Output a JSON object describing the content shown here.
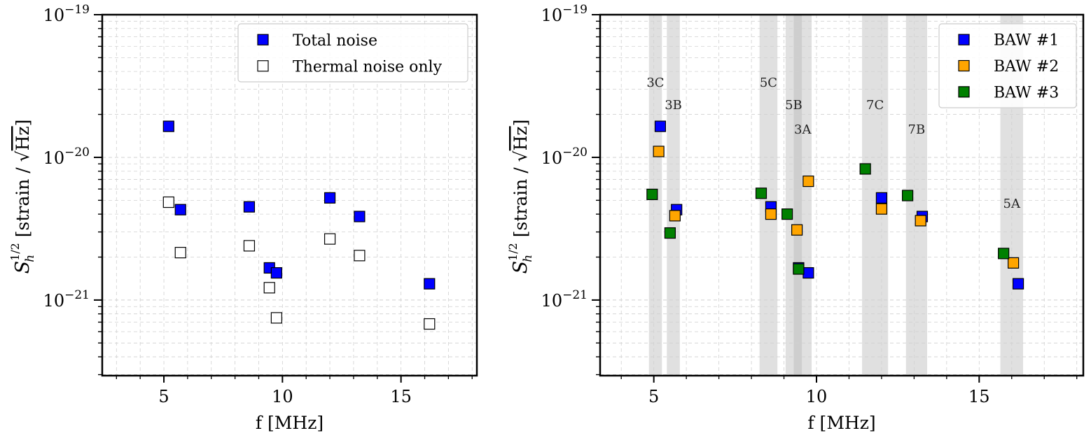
{
  "chart_data": [
    {
      "type": "scatter",
      "xlabel": "f [MHz]",
      "ylabel": "S_h^{1/2} [strain / √Hz]",
      "xlim": [
        2.4,
        18.2
      ],
      "ylim_log10": [
        -21.53,
        -19
      ],
      "yscale": "log",
      "xticks": [
        5,
        10,
        15
      ],
      "yticks": [
        {
          "base": "10",
          "exp": "−19"
        },
        {
          "base": "10",
          "exp": "−20"
        },
        {
          "base": "10",
          "exp": "−21"
        }
      ],
      "grid": true,
      "legend_position": "top-right",
      "series": [
        {
          "name": "Total noise",
          "color": "#0000ff",
          "filled": true,
          "points": [
            [
              5.2,
              1.65e-20
            ],
            [
              5.7,
              4.3e-21
            ],
            [
              8.6,
              4.5e-21
            ],
            [
              9.45,
              1.68e-21
            ],
            [
              9.75,
              1.55e-21
            ],
            [
              12.0,
              5.2e-21
            ],
            [
              13.25,
              3.85e-21
            ],
            [
              16.2,
              1.3e-21
            ]
          ]
        },
        {
          "name": "Thermal noise only",
          "color": "#ffffff",
          "filled": false,
          "points": [
            [
              5.2,
              4.85e-21
            ],
            [
              5.7,
              2.15e-21
            ],
            [
              8.6,
              2.4e-21
            ],
            [
              9.45,
              1.22e-21
            ],
            [
              9.75,
              7.5e-22
            ],
            [
              12.0,
              2.68e-21
            ],
            [
              13.25,
              2.05e-21
            ],
            [
              16.2,
              6.8e-22
            ]
          ]
        }
      ]
    },
    {
      "type": "scatter",
      "xlabel": "f [MHz]",
      "ylabel": "S_h^{1/2} [strain / √Hz]",
      "xlim": [
        3.35,
        18.2
      ],
      "ylim_log10": [
        -21.53,
        -19
      ],
      "yscale": "log",
      "xticks": [
        5,
        10,
        15
      ],
      "yticks": [
        {
          "base": "10",
          "exp": "−19"
        },
        {
          "base": "10",
          "exp": "−20"
        },
        {
          "base": "10",
          "exp": "−21"
        }
      ],
      "grid": true,
      "legend_position": "top-right",
      "bands": [
        {
          "label": "3C",
          "x0": 4.85,
          "x1": 5.25,
          "label_y": 3.3e-20
        },
        {
          "label": "3B",
          "x0": 5.4,
          "x1": 5.8,
          "label_y": 2.3e-20
        },
        {
          "label": "5C",
          "x0": 8.25,
          "x1": 8.8,
          "label_y": 3.3e-20
        },
        {
          "label": "5B",
          "x0": 9.05,
          "x1": 9.55,
          "label_y": 2.3e-20
        },
        {
          "label": "3A",
          "x0": 9.3,
          "x1": 9.85,
          "label_y": 1.55e-20
        },
        {
          "label": "7C",
          "x0": 11.4,
          "x1": 12.2,
          "label_y": 2.3e-20
        },
        {
          "label": "7B",
          "x0": 12.75,
          "x1": 13.4,
          "label_y": 1.55e-20
        },
        {
          "label": "5A",
          "x0": 15.65,
          "x1": 16.35,
          "label_y": 4.7e-21
        }
      ],
      "series": [
        {
          "name": "BAW #1",
          "color": "#0000ff",
          "points": [
            [
              5.2,
              1.65e-20
            ],
            [
              5.7,
              4.3e-21
            ],
            [
              8.6,
              4.5e-21
            ],
            [
              9.45,
              1.68e-21
            ],
            [
              9.75,
              1.55e-21
            ],
            [
              12.0,
              5.2e-21
            ],
            [
              13.25,
              3.85e-21
            ],
            [
              16.2,
              1.3e-21
            ]
          ]
        },
        {
          "name": "BAW #2",
          "color": "#ffa500",
          "points": [
            [
              5.15,
              1.1e-20
            ],
            [
              5.65,
              3.9e-21
            ],
            [
              8.6,
              4e-21
            ],
            [
              9.4,
              3.1e-21
            ],
            [
              9.75,
              6.8e-21
            ],
            [
              12.0,
              4.35e-21
            ],
            [
              13.2,
              3.6e-21
            ],
            [
              16.05,
              1.82e-21
            ]
          ]
        },
        {
          "name": "BAW #3",
          "color": "#008000",
          "points": [
            [
              4.95,
              5.5e-21
            ],
            [
              5.5,
              2.95e-21
            ],
            [
              8.3,
              5.6e-21
            ],
            [
              9.1,
              4e-21
            ],
            [
              9.45,
              1.65e-21
            ],
            [
              11.5,
              8.3e-21
            ],
            [
              12.8,
              5.4e-21
            ],
            [
              15.75,
              2.12e-21
            ]
          ]
        }
      ]
    }
  ]
}
